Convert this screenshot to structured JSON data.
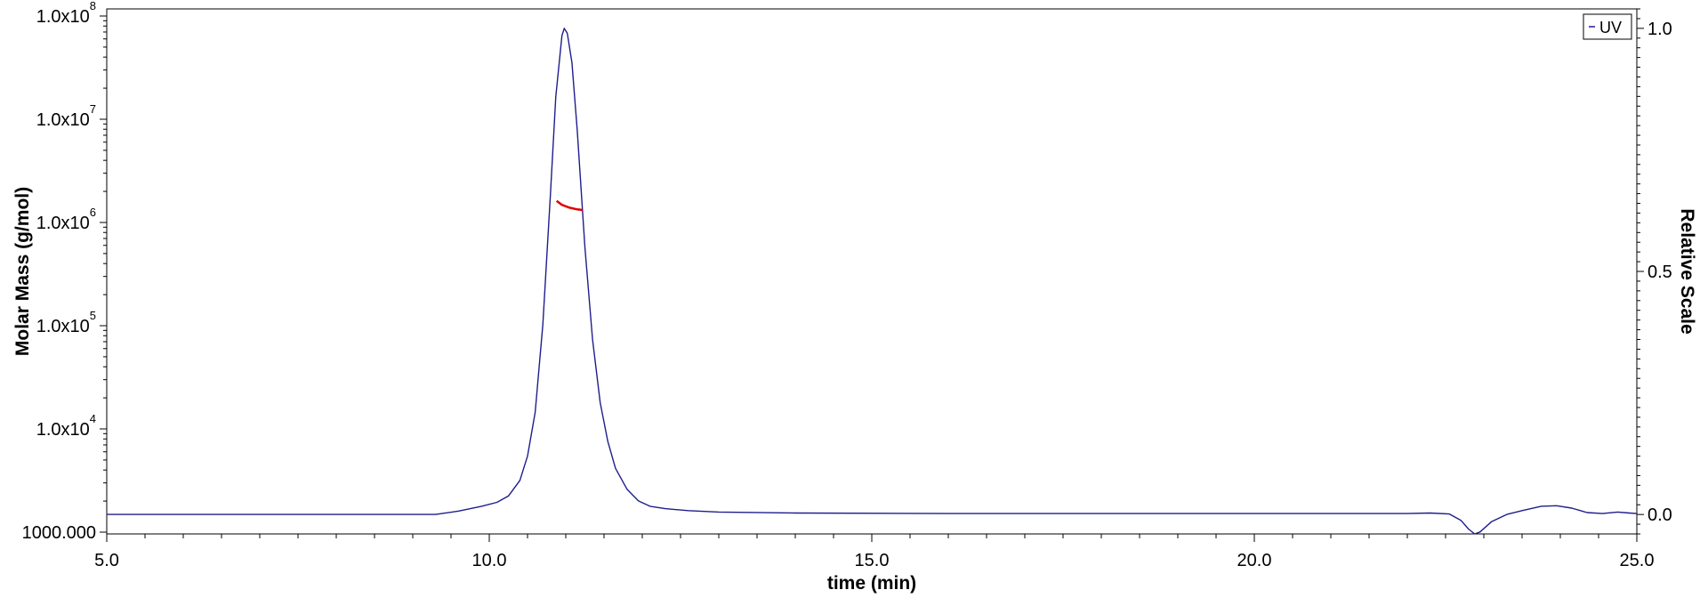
{
  "chart_data": {
    "type": "line",
    "xlabel": "time (min)",
    "ylabel_left": "Molar Mass (g/mol)",
    "ylabel_right": "Relative Scale",
    "x_range": [
      5.0,
      25.0
    ],
    "x_ticks": [
      5.0,
      10.0,
      15.0,
      20.0,
      25.0
    ],
    "x_tick_labels": [
      "5.0",
      "10.0",
      "15.0",
      "20.0",
      "25.0"
    ],
    "y_left_scale": "log",
    "y_left_range": [
      1000,
      100000000
    ],
    "y_left_ticks": [
      {
        "value": 1000,
        "label": "1000.000",
        "mantissa": "",
        "exponent": ""
      },
      {
        "value": 10000,
        "label": "",
        "mantissa": "1.0x10",
        "exponent": "4"
      },
      {
        "value": 100000,
        "label": "",
        "mantissa": "1.0x10",
        "exponent": "5"
      },
      {
        "value": 1000000,
        "label": "",
        "mantissa": "1.0x10",
        "exponent": "6"
      },
      {
        "value": 10000000,
        "label": "",
        "mantissa": "1.0x10",
        "exponent": "7"
      },
      {
        "value": 100000000,
        "label": "",
        "mantissa": "1.0x10",
        "exponent": "8"
      }
    ],
    "y_right_range": [
      -0.04,
      1.04
    ],
    "y_right_ticks": [
      0.0,
      0.5,
      1.0
    ],
    "y_right_tick_labels": [
      "0.0",
      "0.5",
      "1.0"
    ],
    "legend": {
      "position": "top-right",
      "entries": [
        "UV"
      ]
    },
    "grid": false,
    "colors": {
      "uv": "#1e1e8c",
      "molar_mass": "#e00000",
      "axis": "#000000"
    },
    "series": [
      {
        "name": "UV",
        "axis": "right",
        "points": [
          [
            5.0,
            0.0
          ],
          [
            9.3,
            0.0
          ],
          [
            9.6,
            0.007
          ],
          [
            9.9,
            0.017
          ],
          [
            10.1,
            0.025
          ],
          [
            10.25,
            0.038
          ],
          [
            10.4,
            0.07
          ],
          [
            10.5,
            0.12
          ],
          [
            10.6,
            0.21
          ],
          [
            10.7,
            0.39
          ],
          [
            10.8,
            0.66
          ],
          [
            10.87,
            0.86
          ],
          [
            10.95,
            0.985
          ],
          [
            10.98,
            1.0
          ],
          [
            11.02,
            0.99
          ],
          [
            11.08,
            0.93
          ],
          [
            11.15,
            0.79
          ],
          [
            11.25,
            0.55
          ],
          [
            11.35,
            0.36
          ],
          [
            11.45,
            0.23
          ],
          [
            11.55,
            0.15
          ],
          [
            11.65,
            0.095
          ],
          [
            11.8,
            0.052
          ],
          [
            11.95,
            0.028
          ],
          [
            12.1,
            0.017
          ],
          [
            12.3,
            0.012
          ],
          [
            12.6,
            0.008
          ],
          [
            13.0,
            0.005
          ],
          [
            14.0,
            0.003
          ],
          [
            16.0,
            0.002
          ],
          [
            22.0,
            0.002
          ],
          [
            22.3,
            0.003
          ],
          [
            22.55,
            0.001
          ],
          [
            22.7,
            -0.012
          ],
          [
            22.8,
            -0.03
          ],
          [
            22.88,
            -0.04
          ],
          [
            22.95,
            -0.036
          ],
          [
            23.1,
            -0.015
          ],
          [
            23.3,
            0.0
          ],
          [
            23.5,
            0.008
          ],
          [
            23.75,
            0.017
          ],
          [
            23.95,
            0.018
          ],
          [
            24.15,
            0.013
          ],
          [
            24.35,
            0.004
          ],
          [
            24.55,
            0.002
          ],
          [
            24.75,
            0.005
          ],
          [
            24.9,
            0.003
          ],
          [
            25.0,
            0.002
          ]
        ]
      },
      {
        "name": "",
        "axis": "left",
        "points": [
          [
            10.88,
            1620000
          ],
          [
            10.95,
            1480000
          ],
          [
            11.05,
            1390000
          ],
          [
            11.15,
            1340000
          ],
          [
            11.22,
            1320000
          ]
        ]
      }
    ]
  }
}
